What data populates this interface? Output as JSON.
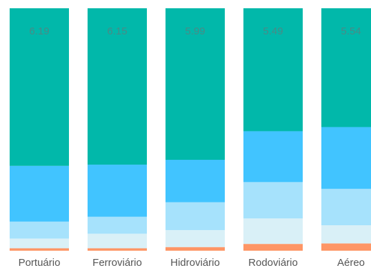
{
  "chart_data": {
    "type": "bar",
    "stacked": true,
    "normalized": true,
    "categories": [
      "Portuário",
      "Ferroviário",
      "Hidroviário",
      "Rodoviário",
      "Aéreo"
    ],
    "series": [
      {
        "color": "#FE9666",
        "values": [
          1.0,
          1.0,
          1.5,
          2.8,
          3.0
        ]
      },
      {
        "color": "#D9F0F7",
        "values": [
          4.0,
          6.0,
          7.0,
          10.5,
          7.5
        ]
      },
      {
        "color": "#A6E2FC",
        "values": [
          7.0,
          7.0,
          11.5,
          15.0,
          15.0
        ]
      },
      {
        "color": "#41C4FF",
        "values": [
          23.0,
          21.5,
          17.5,
          21.0,
          25.5
        ]
      },
      {
        "color": "#01B8AA",
        "values": [
          65.0,
          64.5,
          62.5,
          50.7,
          49.0
        ]
      }
    ],
    "data_labels": [
      "6.19",
      "6.15",
      "5.99",
      "5.49",
      "5.54"
    ],
    "label_color": "#4A8A86",
    "ylim": [
      0,
      100
    ],
    "legend": "none",
    "grid": false,
    "xlabel": "",
    "ylabel": ""
  }
}
